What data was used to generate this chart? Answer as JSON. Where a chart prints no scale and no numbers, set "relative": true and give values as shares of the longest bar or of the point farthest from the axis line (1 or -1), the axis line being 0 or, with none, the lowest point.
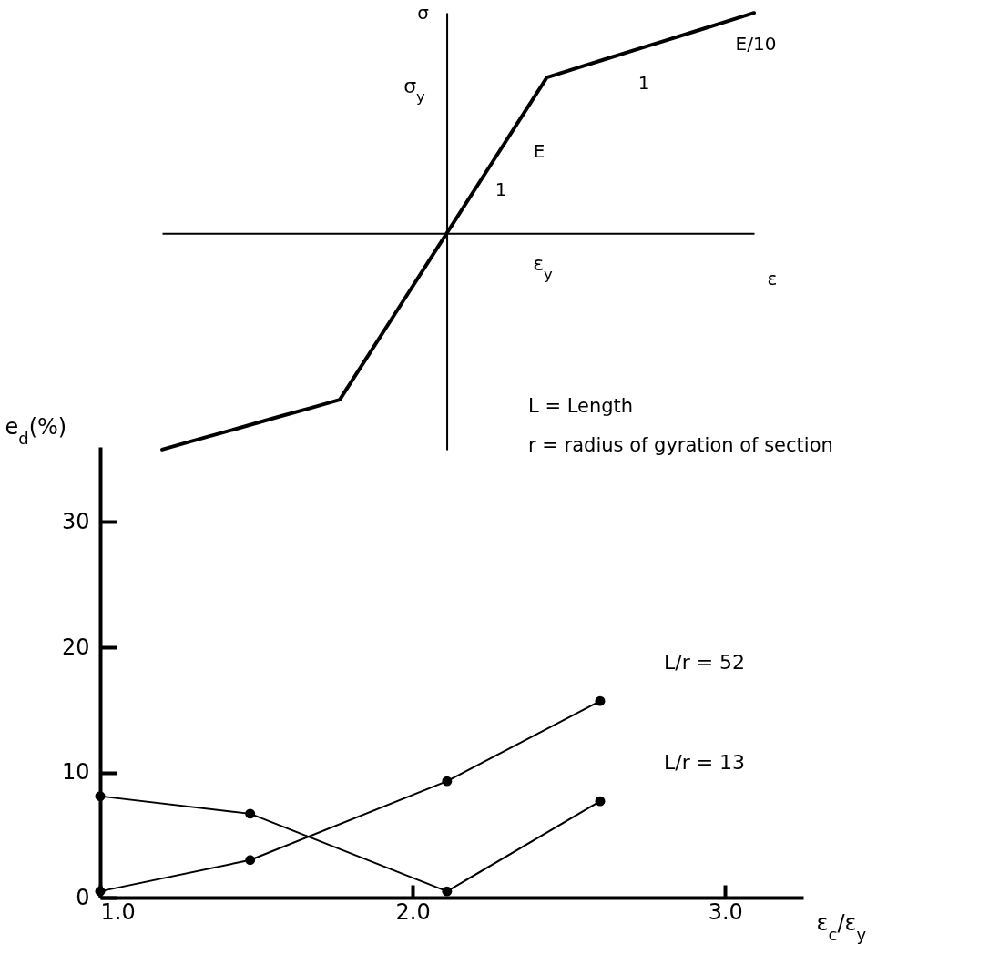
{
  "chart_data": [
    {
      "type": "line",
      "relative": true,
      "xlabel": "ε",
      "ylabel": "σ",
      "categories": [
        null,
        null,
        null,
        null,
        null,
        null,
        null,
        null,
        null,
        null,
        null,
        null,
        null,
        null,
        null,
        null,
        null,
        null,
        null,
        null,
        null
      ],
      "series": [
        {
          "color": "#000000",
          "values": [
            -0.982,
            -0.944,
            -0.907,
            -0.869,
            -0.831,
            -0.794,
            -0.756,
            -0.547,
            -0.338,
            -0.129,
            0.08,
            0.289,
            0.498,
            0.707,
            0.749,
            0.791,
            0.833,
            0.874,
            0.916,
            0.958,
            1.0
          ]
        }
      ],
      "annotations": [
        "σ$_{y}$",
        "ε$_{y}$",
        "E",
        "1",
        "E/10",
        "1"
      ]
    },
    {
      "type": "line",
      "xlabel": "ε$_{c}$/ε$_{y}$",
      "ylabel": "e$_{d}$(%)",
      "xlim": [
        1.0,
        3.25
      ],
      "ylim": [
        0,
        36
      ],
      "xticks": [
        {
          "value": 1,
          "label": "1.0"
        },
        {
          "value": 2,
          "label": "2.0"
        },
        {
          "value": 3,
          "label": "3.0"
        }
      ],
      "yticks": [
        0,
        10,
        20,
        30
      ],
      "marker": "circle",
      "x": [
        1.0,
        1.48,
        2.11,
        2.6
      ],
      "series": [
        {
          "name": "L/r = 52",
          "color": "#000000",
          "values": [
            0.5,
            3.0,
            9.3,
            15.7
          ]
        },
        {
          "name": "L/r = 13",
          "color": "#000000",
          "values": [
            8.1,
            6.7,
            0.5,
            7.7
          ]
        }
      ],
      "annotations": [
        "L = Length",
        "r = radius of gyration of section"
      ]
    }
  ]
}
